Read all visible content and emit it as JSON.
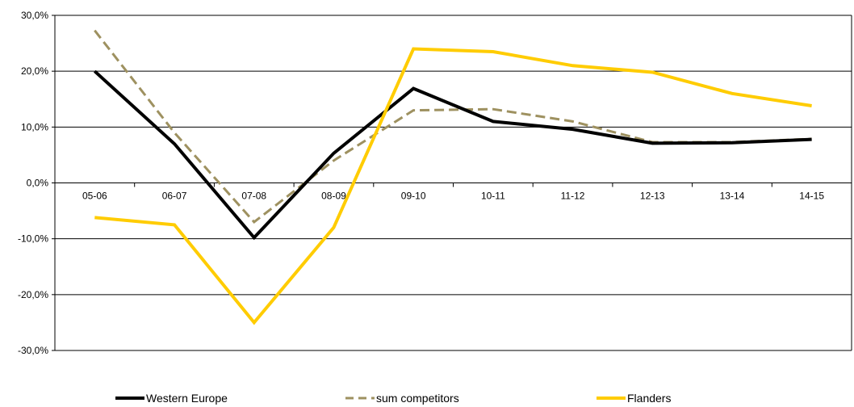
{
  "chart_data": {
    "type": "line",
    "title": "",
    "xlabel": "",
    "ylabel": "",
    "categories": [
      "05-06",
      "06-07",
      "07-08",
      "08-09",
      "09-10",
      "10-11",
      "11-12",
      "12-13",
      "13-14",
      "14-15"
    ],
    "ylim": [
      -0.3,
      0.3
    ],
    "yticks": [
      0.3,
      0.2,
      0.1,
      0.0,
      -0.1,
      -0.2,
      -0.3
    ],
    "ytick_labels": [
      "30,0%",
      "20,0%",
      "10,0%",
      "0,0%",
      "-10,0%",
      "-20,0%",
      "-30,0%"
    ],
    "grid": "horizontal",
    "legend_position": "bottom",
    "series": [
      {
        "name": "Western Europe",
        "color": "#000000",
        "style": "solid",
        "values": [
          0.2,
          0.07,
          -0.098,
          0.053,
          0.169,
          0.11,
          0.096,
          0.071,
          0.072,
          0.078
        ]
      },
      {
        "name": "sum competitors",
        "color": "#9e9160",
        "style": "dashed",
        "values": [
          0.273,
          0.09,
          -0.07,
          0.04,
          0.13,
          0.132,
          0.11,
          0.073,
          0.073,
          0.079
        ]
      },
      {
        "name": "Flanders",
        "color": "#ffcc00",
        "style": "solid",
        "values": [
          -0.062,
          -0.075,
          -0.25,
          -0.08,
          0.24,
          0.235,
          0.21,
          0.198,
          0.16,
          0.138
        ]
      }
    ]
  }
}
